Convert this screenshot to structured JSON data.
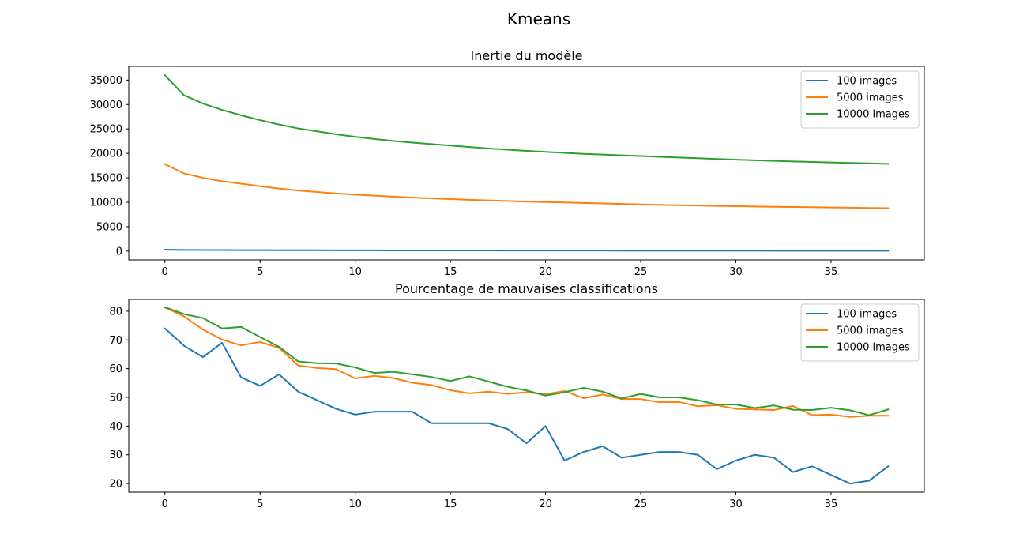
{
  "figure": {
    "title": "Kmeans"
  },
  "chart_data": [
    {
      "type": "line",
      "title": "Inertie du modèle",
      "xlabel": "",
      "ylabel": "",
      "xlim": [
        -1.9,
        39.9
      ],
      "ylim": [
        -1800,
        37800
      ],
      "xticks": [
        0,
        5,
        10,
        15,
        20,
        25,
        30,
        35
      ],
      "yticks": [
        0,
        5000,
        10000,
        15000,
        20000,
        25000,
        30000,
        35000
      ],
      "grid": false,
      "legend": "top-right",
      "x": [
        0,
        1,
        2,
        3,
        4,
        5,
        6,
        7,
        8,
        9,
        10,
        11,
        12,
        13,
        14,
        15,
        16,
        17,
        18,
        19,
        20,
        21,
        22,
        23,
        24,
        25,
        26,
        27,
        28,
        29,
        30,
        31,
        32,
        33,
        34,
        35,
        36,
        37,
        38
      ],
      "series": [
        {
          "name": "100 images",
          "color": "#1f77b4",
          "values": [
            300,
            250,
            230,
            215,
            205,
            195,
            185,
            178,
            172,
            166,
            160,
            155,
            150,
            146,
            142,
            138,
            134,
            130,
            127,
            124,
            121,
            118,
            115,
            112,
            109,
            106,
            103,
            100,
            97,
            94,
            92,
            90,
            88,
            86,
            84,
            82,
            80,
            78,
            76
          ]
        },
        {
          "name": "5000 images",
          "color": "#ff7f0e",
          "values": [
            17800,
            15900,
            15000,
            14300,
            13800,
            13300,
            12800,
            12400,
            12100,
            11800,
            11550,
            11350,
            11150,
            10950,
            10800,
            10650,
            10500,
            10380,
            10260,
            10150,
            10050,
            9950,
            9850,
            9750,
            9650,
            9560,
            9480,
            9400,
            9330,
            9260,
            9200,
            9140,
            9080,
            9030,
            8980,
            8930,
            8880,
            8830,
            8780
          ]
        },
        {
          "name": "10000 images",
          "color": "#2ca02c",
          "values": [
            36000,
            31900,
            30200,
            28900,
            27800,
            26800,
            25900,
            25100,
            24500,
            23900,
            23400,
            22950,
            22550,
            22200,
            21900,
            21600,
            21300,
            21000,
            20750,
            20500,
            20300,
            20100,
            19900,
            19750,
            19600,
            19450,
            19300,
            19150,
            19000,
            18850,
            18700,
            18580,
            18460,
            18350,
            18250,
            18150,
            18050,
            17950,
            17850
          ]
        }
      ]
    },
    {
      "type": "line",
      "title": "Pourcentage de mauvaises classifications",
      "xlabel": "",
      "ylabel": "",
      "xlim": [
        -1.9,
        39.9
      ],
      "ylim": [
        17.0,
        84.1
      ],
      "xticks": [
        0,
        5,
        10,
        15,
        20,
        25,
        30,
        35
      ],
      "yticks": [
        20,
        30,
        40,
        50,
        60,
        70,
        80
      ],
      "grid": false,
      "legend": "top-right",
      "x": [
        0,
        1,
        2,
        3,
        4,
        5,
        6,
        7,
        8,
        9,
        10,
        11,
        12,
        13,
        14,
        15,
        16,
        17,
        18,
        19,
        20,
        21,
        22,
        23,
        24,
        25,
        26,
        27,
        28,
        29,
        30,
        31,
        32,
        33,
        34,
        35,
        36,
        37,
        38
      ],
      "series": [
        {
          "name": "100 images",
          "color": "#1f77b4",
          "values": [
            74,
            68,
            64,
            69,
            57,
            54,
            58,
            52,
            49,
            46,
            44,
            45,
            45,
            45,
            41,
            41,
            41,
            41,
            39,
            34,
            40,
            28,
            31,
            33,
            29,
            30,
            31,
            31,
            30,
            25,
            28,
            30,
            29,
            24,
            26,
            23,
            20,
            21,
            26
          ]
        },
        {
          "name": "5000 images",
          "color": "#ff7f0e",
          "values": [
            81.3,
            78.2,
            73.6,
            70.1,
            68.1,
            69.3,
            67.2,
            61.1,
            60.2,
            59.8,
            56.6,
            57.5,
            56.7,
            55.1,
            54.3,
            52.5,
            51.4,
            52.0,
            51.2,
            51.8,
            51.1,
            52.2,
            49.7,
            51.0,
            49.4,
            49.4,
            48.3,
            48.4,
            46.9,
            47.3,
            46.0,
            45.8,
            45.6,
            47.0,
            43.8,
            44.0,
            43.2,
            43.6,
            43.6
          ]
        },
        {
          "name": "10000 images",
          "color": "#2ca02c",
          "values": [
            81.4,
            79.0,
            77.6,
            74.0,
            74.5,
            71.0,
            67.6,
            62.5,
            61.9,
            61.8,
            60.4,
            58.5,
            58.9,
            58.0,
            57.1,
            55.7,
            57.3,
            55.5,
            53.7,
            52.4,
            50.6,
            51.8,
            53.3,
            52.0,
            49.6,
            51.2,
            50.0,
            50.0,
            49.0,
            47.5,
            47.5,
            46.3,
            47.2,
            45.7,
            45.6,
            46.4,
            45.5,
            43.8,
            45.8
          ]
        }
      ]
    }
  ]
}
